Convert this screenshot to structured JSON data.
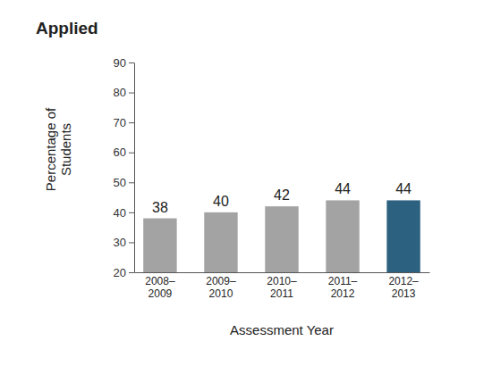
{
  "chart_data": {
    "type": "bar",
    "title": "Applied",
    "y_label": "Percentage of Students",
    "x_label": "Assessment Year",
    "categories": [
      "2008–2009",
      "2009–2010",
      "2010–2011",
      "2011–2012",
      "2012–2013"
    ],
    "values": [
      38,
      40,
      42,
      44,
      44
    ],
    "colors": [
      "#a3a3a3",
      "#a3a3a3",
      "#a3a3a3",
      "#a3a3a3",
      "#2d6180"
    ],
    "ylim": [
      20,
      90
    ],
    "yticks": [
      20,
      30,
      40,
      50,
      60,
      70,
      80,
      90
    ],
    "grid": false,
    "data_labels": true
  }
}
